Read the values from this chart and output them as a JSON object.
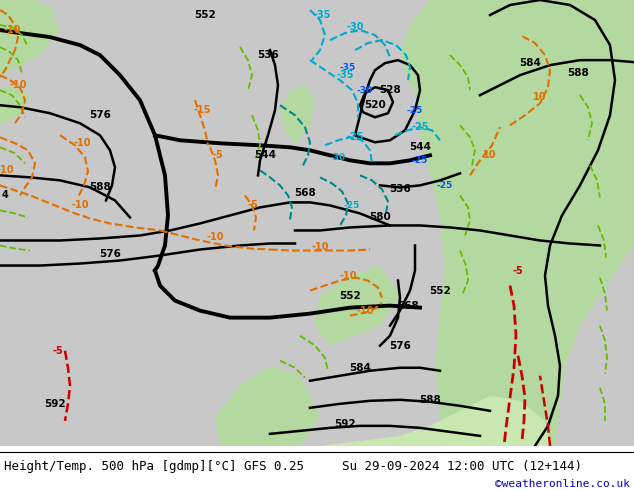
{
  "title_left": "Height/Temp. 500 hPa [gdmp][°C] GFS 0.25",
  "title_right": "Su 29-09-2024 12:00 UTC (12+144)",
  "credit": "©weatheronline.co.uk",
  "credit_color": "#0000cc",
  "bg_color": "#ffffff",
  "land_green": "#b4d9a0",
  "land_green2": "#c8e8b0",
  "sea_gray": "#b4b4b4",
  "map_gray": "#c0c0c0",
  "title_fontsize": 9.0,
  "credit_fontsize": 8,
  "figsize": [
    6.34,
    4.9
  ],
  "dpi": 100,
  "black_lw": 1.8,
  "thick_lw": 2.8,
  "orange": "#E07000",
  "cyan_col": "#00AACC",
  "blue_col": "#0055FF",
  "green_col": "#66BB00",
  "red_col": "#CC0000"
}
